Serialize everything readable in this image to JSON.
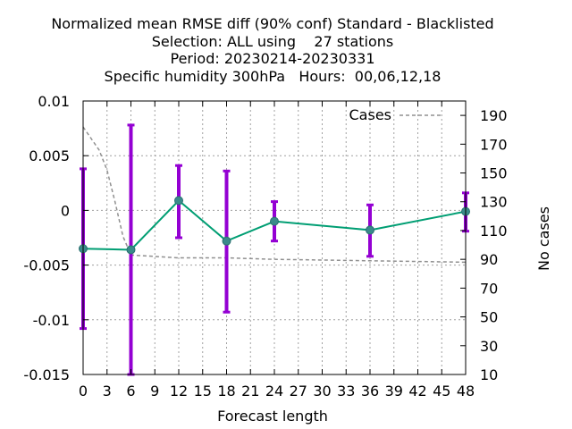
{
  "title_lines": [
    "Normalized mean RMSE diff (90% conf) Standard - Blacklisted",
    "Selection: ALL using    27 stations",
    "Period: 20230214-20230331",
    "Specific humidity 300hPa   Hours:  00,06,12,18"
  ],
  "chart_data": {
    "type": "line",
    "xlabel": "Forecast length",
    "ylabel_right": "No cases",
    "x_ticks": [
      "0",
      "3",
      "6",
      "9",
      "12",
      "15",
      "18",
      "21",
      "24",
      "27",
      "30",
      "33",
      "36",
      "39",
      "42",
      "45",
      "48"
    ],
    "y_ticks_left": [
      "0.01",
      "0.005",
      "0",
      "-0.005",
      "-0.01",
      "-0.015"
    ],
    "y_ticks_right": [
      "190",
      "170",
      "150",
      "130",
      "110",
      "90",
      "70",
      "50",
      "30",
      "10"
    ],
    "xlim": [
      0,
      48
    ],
    "ylim_left": [
      -0.015,
      0.01
    ],
    "ylim_right": [
      10,
      200
    ],
    "grid": true,
    "legend_position": "top-right",
    "series": [
      {
        "name": "",
        "axis": "left",
        "style": "line-with-errorbars",
        "color": "#009e73",
        "errorbar_color": "#9400d3",
        "x": [
          0,
          6,
          12,
          18,
          24,
          36,
          48
        ],
        "y": [
          -0.0035,
          -0.0036,
          0.0009,
          -0.0028,
          -0.001,
          -0.0018,
          -0.0001
        ],
        "low": [
          -0.0108,
          -0.015,
          -0.0025,
          -0.0093,
          -0.0028,
          -0.0042,
          -0.0019
        ],
        "high": [
          0.0038,
          0.0078,
          0.0041,
          0.0036,
          0.0008,
          0.0005,
          0.0016
        ]
      },
      {
        "name": "Cases",
        "axis": "right",
        "style": "dashed",
        "color": "#909090",
        "x": [
          0,
          2,
          3,
          4,
          5,
          6,
          12,
          18,
          24,
          36,
          48
        ],
        "y": [
          182,
          166,
          152,
          130,
          106,
          93,
          91,
          91,
          90,
          89,
          88
        ]
      }
    ]
  }
}
